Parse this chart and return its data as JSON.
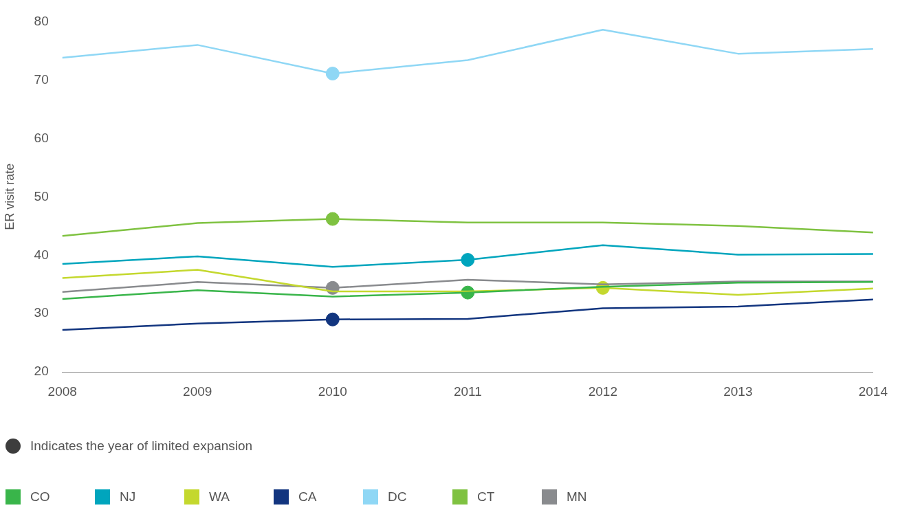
{
  "chart_data": {
    "type": "line",
    "ylabel": "ER visit rate",
    "annotations": [
      "Indicates the year of limited expansion"
    ],
    "categories": [
      "2008",
      "2009",
      "2010",
      "2011",
      "2012",
      "2013",
      "2014"
    ],
    "ylim": [
      20,
      80
    ],
    "yticks": [
      20,
      30,
      40,
      50,
      60,
      70,
      80
    ],
    "grid": false,
    "legend": "bottom",
    "marker": "none",
    "line_style": "solid",
    "series": [
      {
        "name": "CO",
        "color": "#39b54a",
        "values": [
          32.5,
          34.0,
          32.9,
          33.6,
          34.6,
          35.3,
          35.4
        ]
      },
      {
        "name": "NJ",
        "color": "#00a5bd",
        "values": [
          38.5,
          39.8,
          38.0,
          39.2,
          41.7,
          40.1,
          40.2
        ]
      },
      {
        "name": "WA",
        "color": "#c4d82e",
        "values": [
          36.1,
          37.5,
          33.8,
          33.8,
          34.4,
          33.2,
          34.3
        ]
      },
      {
        "name": "CA",
        "color": "#12357f",
        "values": [
          27.2,
          28.3,
          29.0,
          29.1,
          30.9,
          31.2,
          32.4
        ]
      },
      {
        "name": "DC",
        "color": "#8fd7f5",
        "values": [
          73.8,
          76.0,
          71.1,
          73.4,
          78.6,
          74.5,
          75.3
        ]
      },
      {
        "name": "CT",
        "color": "#7fc241",
        "values": [
          43.3,
          45.5,
          46.2,
          45.6,
          45.6,
          45.0,
          43.9
        ]
      },
      {
        "name": "MN",
        "color": "#898b8e",
        "values": [
          33.7,
          35.4,
          34.4,
          35.8,
          35.0,
          35.5,
          35.5
        ]
      },
      {
        "type": "scatter",
        "marker": "circle",
        "color": "#39b54a",
        "values": [
          null,
          null,
          null,
          33.6,
          null,
          null,
          null
        ]
      },
      {
        "type": "scatter",
        "marker": "circle",
        "color": "#00a5bd",
        "values": [
          null,
          null,
          null,
          39.2,
          null,
          null,
          null
        ]
      },
      {
        "type": "scatter",
        "marker": "circle",
        "color": "#c4d82e",
        "values": [
          null,
          null,
          null,
          null,
          34.4,
          null,
          null
        ]
      },
      {
        "type": "scatter",
        "marker": "circle",
        "color": "#12357f",
        "values": [
          null,
          null,
          29.0,
          null,
          null,
          null,
          null
        ]
      },
      {
        "type": "scatter",
        "marker": "circle",
        "color": "#8fd7f5",
        "values": [
          null,
          null,
          71.1,
          null,
          null,
          null,
          null
        ]
      },
      {
        "type": "scatter",
        "marker": "circle",
        "color": "#7fc241",
        "values": [
          null,
          null,
          46.2,
          null,
          null,
          null,
          null
        ]
      },
      {
        "type": "scatter",
        "marker": "circle",
        "color": "#898b8e",
        "values": [
          null,
          null,
          34.4,
          null,
          null,
          null,
          null
        ]
      }
    ]
  }
}
